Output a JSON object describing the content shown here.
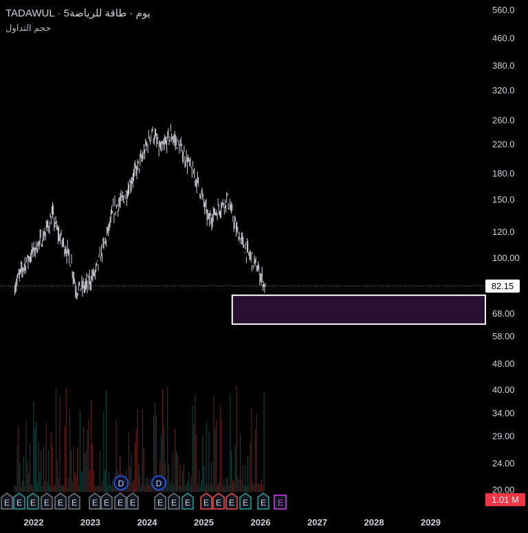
{
  "header": {
    "symbol_line": "5يوم · طاقة للرياضة",
    "exchange": "TADAWUL",
    "sub_line": "حجم التداول"
  },
  "current_price_label": "82.15",
  "volume_label": "1.01 M",
  "colors": {
    "background": "#000000",
    "bars": "#d1d4dc",
    "zone_fill": "#2a1030",
    "zone_border": "#ffffff",
    "volume_up": "#26a69a",
    "volume_down": "#ef5350",
    "earnings": "#787b86",
    "dividend": "#2962ff",
    "split": "#e040fb"
  },
  "event_markers": {
    "earnings_label": "E",
    "dividend_label": "D"
  },
  "chart_data": {
    "type": "ohlc",
    "y_scale": "log",
    "y_ticks": [
      "560.0",
      "460.0",
      "380.0",
      "320.0",
      "260.0",
      "220.0",
      "180.0",
      "150.0",
      "120.0",
      "100.00",
      "82.15",
      "68.00",
      "58.00",
      "48.00",
      "40.00",
      "34.00",
      "29.00",
      "24.00",
      "20.00"
    ],
    "x_ticks": [
      "2022",
      "2023",
      "2024",
      "2025",
      "2026",
      "2027",
      "2028",
      "2029"
    ],
    "price_path": [
      [
        "2021-09",
        82
      ],
      [
        "2021-11",
        95
      ],
      [
        "2022-01",
        105
      ],
      [
        "2022-03",
        115
      ],
      [
        "2022-05",
        135
      ],
      [
        "2022-06",
        120
      ],
      [
        "2022-08",
        105
      ],
      [
        "2022-09",
        96
      ],
      [
        "2022-10",
        80
      ],
      [
        "2022-12",
        82
      ],
      [
        "2023-02",
        90
      ],
      [
        "2023-04",
        110
      ],
      [
        "2023-06",
        140
      ],
      [
        "2023-08",
        150
      ],
      [
        "2023-10",
        175
      ],
      [
        "2023-12",
        200
      ],
      [
        "2024-02",
        240
      ],
      [
        "2024-04",
        210
      ],
      [
        "2024-06",
        235
      ],
      [
        "2024-08",
        215
      ],
      [
        "2024-10",
        190
      ],
      [
        "2024-12",
        165
      ],
      [
        "2025-02",
        130
      ],
      [
        "2025-04",
        140
      ],
      [
        "2025-06",
        150
      ],
      [
        "2025-08",
        120
      ],
      [
        "2025-10",
        105
      ],
      [
        "2025-12",
        95
      ],
      [
        "2026-02",
        82.15
      ]
    ],
    "current_price": 82.15,
    "demand_zone": {
      "low": 63.0,
      "high": 77.0,
      "start": "2025-07",
      "end": "open"
    },
    "volume_label": "1.01 M",
    "earnings_events": [
      "2021-Q3",
      "2021-Q4",
      "2022-Q1",
      "2022-Q2",
      "2022-Q3",
      "2022-Q4",
      "2023-Q1",
      "2023-Q2",
      "2023-Q3",
      "2023-Q4",
      "2024-Q1",
      "2024-Q2",
      "2024-Q3",
      "2024-Q4",
      "2025-Q1",
      "2025-Q2",
      "2025-Q3",
      "2025-Q4",
      "2026-Q1"
    ],
    "dividend_events": [
      "2023-08",
      "2024-03"
    ]
  }
}
